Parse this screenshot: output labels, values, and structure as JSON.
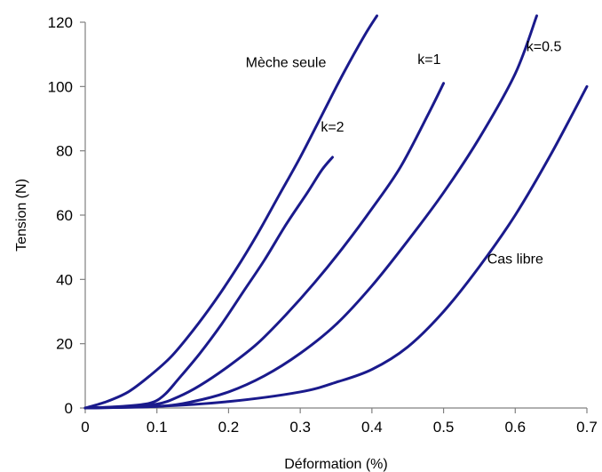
{
  "chart_data": {
    "type": "line",
    "title": "",
    "xlabel": "Déformation (%)",
    "ylabel": "Tension (N)",
    "xlim": [
      0,
      0.7
    ],
    "ylim": [
      0,
      120
    ],
    "x_ticks": [
      0,
      0.1,
      0.2,
      0.3,
      0.4,
      0.5,
      0.6,
      0.7
    ],
    "x_tick_labels": [
      "0",
      "0.1",
      "0.2",
      "0.3",
      "0.4",
      "0.5",
      "0.6",
      "0.7"
    ],
    "y_ticks": [
      0,
      20,
      40,
      60,
      80,
      100,
      120
    ],
    "y_tick_labels": [
      "0",
      "20",
      "40",
      "60",
      "80",
      "100",
      "120"
    ],
    "grid": false,
    "legend": "none",
    "line_color": "#1a1a8c",
    "series": [
      {
        "name": "Mèche seule",
        "x": [
          0,
          0.03,
          0.06,
          0.09,
          0.12,
          0.15,
          0.18,
          0.21,
          0.24,
          0.27,
          0.3,
          0.33,
          0.36,
          0.39,
          0.407
        ],
        "y": [
          0,
          2,
          5,
          10,
          16,
          24,
          33,
          43,
          54,
          66,
          78,
          91,
          104,
          116,
          122
        ]
      },
      {
        "name": "k=2",
        "x": [
          0,
          0.05,
          0.09,
          0.11,
          0.13,
          0.16,
          0.19,
          0.22,
          0.25,
          0.28,
          0.31,
          0.33,
          0.345
        ],
        "y": [
          0,
          0.5,
          1.5,
          4,
          9,
          17,
          26,
          36,
          46,
          57,
          67,
          74,
          78
        ]
      },
      {
        "name": "k=1",
        "x": [
          0,
          0.05,
          0.1,
          0.13,
          0.16,
          0.2,
          0.24,
          0.28,
          0.32,
          0.36,
          0.4,
          0.44,
          0.48,
          0.5
        ],
        "y": [
          0,
          0.3,
          1.2,
          3.5,
          7,
          13,
          20,
          29,
          39,
          50,
          62,
          75,
          92,
          101
        ]
      },
      {
        "name": "k=0.5",
        "x": [
          0,
          0.1,
          0.15,
          0.2,
          0.25,
          0.3,
          0.35,
          0.4,
          0.45,
          0.5,
          0.55,
          0.6,
          0.63
        ],
        "y": [
          0,
          0.5,
          2,
          5,
          10,
          17,
          26,
          38,
          52,
          67,
          84,
          104,
          122
        ]
      },
      {
        "name": "Cas libre",
        "x": [
          0,
          0.1,
          0.2,
          0.3,
          0.35,
          0.4,
          0.45,
          0.5,
          0.55,
          0.6,
          0.65,
          0.7
        ],
        "y": [
          0,
          0.5,
          2,
          5,
          8,
          12,
          19,
          30,
          44,
          60,
          79,
          100
        ]
      }
    ],
    "annotations": [
      {
        "text": "Mèche seule",
        "x": 0.28,
        "y": 106
      },
      {
        "text": "k=2",
        "x": 0.345,
        "y": 86
      },
      {
        "text": "k=1",
        "x": 0.48,
        "y": 107
      },
      {
        "text": "k=0.5",
        "x": 0.64,
        "y": 111
      },
      {
        "text": "Cas libre",
        "x": 0.6,
        "y": 45
      }
    ]
  }
}
